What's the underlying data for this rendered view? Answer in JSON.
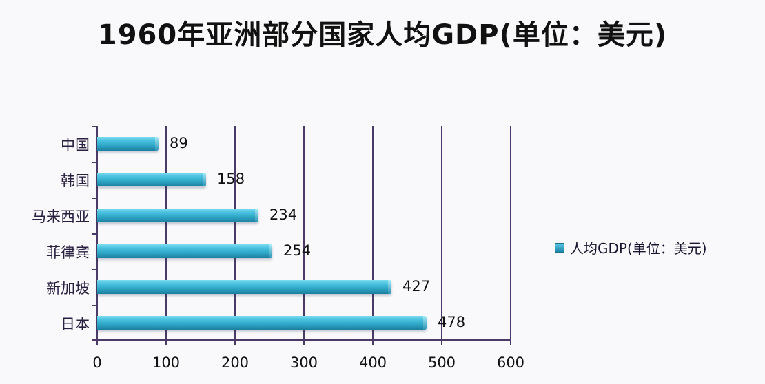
{
  "chart_data": {
    "type": "bar",
    "orientation": "horizontal",
    "title": "1960年亚洲部分国家人均GDP(单位：美元)",
    "xlabel": "",
    "ylabel": "",
    "categories": [
      "中国",
      "韩国",
      "马来西亚",
      "菲律宾",
      "新加坡",
      "日本"
    ],
    "series": [
      {
        "name": "人均GDP(单位：美元)",
        "values": [
          89,
          158,
          234,
          254,
          427,
          478
        ]
      }
    ],
    "xlim": [
      0,
      600
    ],
    "xticks": [
      "0",
      "100",
      "200",
      "300",
      "400",
      "500",
      "600"
    ],
    "grid": "vertical",
    "legend_position": "right",
    "data_labels": [
      "89",
      "158",
      "234",
      "254",
      "427",
      "478"
    ],
    "bar_color": "#2fa8c8"
  },
  "title": "1960年亚洲部分国家人均GDP(单位：美元)",
  "legend": {
    "label": "人均GDP(单位：美元)"
  }
}
